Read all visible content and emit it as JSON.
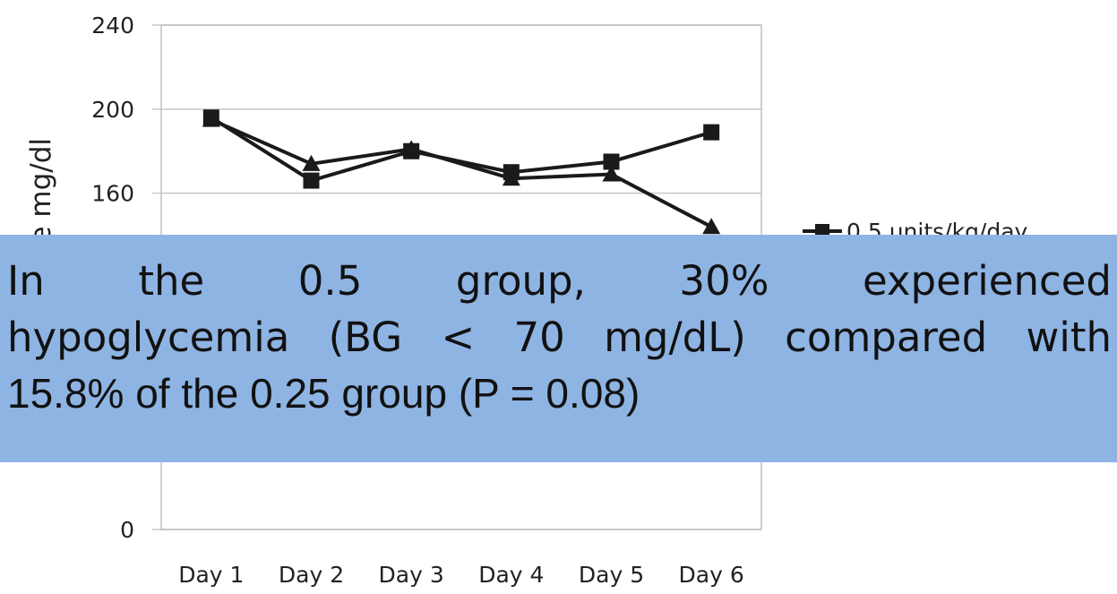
{
  "chart_data": {
    "type": "line",
    "categories": [
      "Day 1",
      "Day 2",
      "Day 3",
      "Day 4",
      "Day 5",
      "Day 6"
    ],
    "ylabel": "Mean glucose mg/dl",
    "ylim": [
      0,
      240
    ],
    "yticks": [
      "0",
      "160",
      "200",
      "240"
    ],
    "grid": true,
    "legend_position": "right",
    "series": [
      {
        "name": "0.5 units/kg/day",
        "marker": "square",
        "values": [
          196,
          166,
          180,
          170,
          175,
          189
        ]
      },
      {
        "name": "",
        "marker": "triangle",
        "values": [
          195,
          174,
          181,
          167,
          169,
          144
        ]
      }
    ]
  },
  "banner": {
    "line1": "In the 0.5 group, 30% experienced",
    "line2": "hypoglycemia (BG < 70 mg/dL) compared with",
    "line3": "15.8% of the 0.25 group (P = 0.08)"
  }
}
